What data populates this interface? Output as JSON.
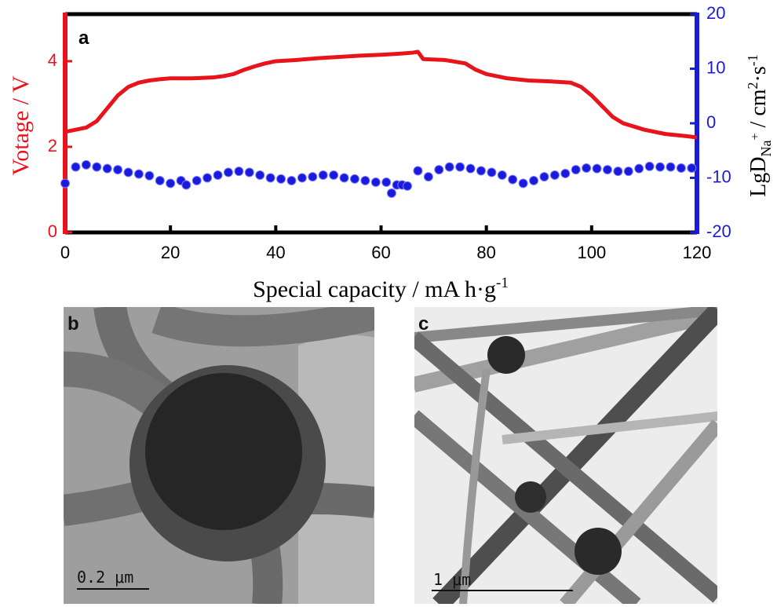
{
  "chart_data": {
    "type": "line",
    "label": "a",
    "xlabel": [
      "Special capacity / mA h·g",
      "-1"
    ],
    "ylabel": "Votage / V",
    "y2label": [
      "LgD",
      "Na",
      "+",
      " / cm",
      "2",
      "·s",
      "-1"
    ],
    "xlim": [
      0,
      120
    ],
    "xticks": [
      0,
      20,
      40,
      60,
      80,
      100,
      120
    ],
    "ylim": [
      0,
      5.1
    ],
    "yticks": [
      0,
      2,
      4
    ],
    "ycolor": "#e8141c",
    "y2lim": [
      -20,
      20
    ],
    "y2ticks": [
      -20,
      -10,
      0,
      10,
      20
    ],
    "y2color": "#1a1adc",
    "series": [
      {
        "color": "#e8141c",
        "style": "line",
        "x": [
          0,
          2,
          4,
          6,
          8,
          10,
          12,
          14,
          16,
          18,
          20,
          24,
          28,
          30,
          32,
          34,
          36,
          38,
          40,
          44,
          48,
          52,
          56,
          60,
          64,
          66,
          67,
          68,
          72,
          76,
          78,
          80,
          84,
          88,
          92,
          96,
          98,
          100,
          102,
          104,
          106,
          110,
          114,
          118,
          120
        ],
        "values": [
          2.35,
          2.4,
          2.45,
          2.6,
          2.9,
          3.2,
          3.4,
          3.5,
          3.55,
          3.58,
          3.6,
          3.6,
          3.62,
          3.65,
          3.7,
          3.8,
          3.88,
          3.95,
          4.0,
          4.03,
          4.07,
          4.1,
          4.13,
          4.15,
          4.18,
          4.2,
          4.22,
          4.05,
          4.03,
          3.95,
          3.8,
          3.7,
          3.6,
          3.55,
          3.53,
          3.5,
          3.4,
          3.2,
          2.95,
          2.7,
          2.55,
          2.4,
          2.3,
          2.25,
          2.22
        ]
      },
      {
        "color": "#1a1adc",
        "style": "markers",
        "axis": "y2",
        "x": [
          0,
          2,
          4,
          6,
          8,
          10,
          12,
          14,
          16,
          18,
          20,
          22,
          23,
          25,
          27,
          29,
          31,
          33,
          35,
          37,
          39,
          41,
          43,
          45,
          47,
          49,
          51,
          53,
          55,
          57,
          59,
          61,
          62,
          63,
          64,
          65,
          67,
          69,
          71,
          73,
          75,
          77,
          79,
          81,
          83,
          85,
          87,
          89,
          91,
          93,
          95,
          97,
          99,
          101,
          103,
          105,
          107,
          109,
          111,
          113,
          115,
          117,
          119
        ],
        "values": [
          -11,
          -8,
          -7.6,
          -8,
          -8.3,
          -8.5,
          -9,
          -9.3,
          -9.6,
          -10.5,
          -11,
          -10.5,
          -11.3,
          -10.5,
          -10,
          -9.5,
          -9,
          -8.8,
          -9,
          -9.5,
          -10,
          -10.2,
          -10.5,
          -10,
          -9.8,
          -9.5,
          -9.5,
          -10,
          -10.2,
          -10.5,
          -10.8,
          -10.8,
          -12.8,
          -11.3,
          -11.3,
          -11.5,
          -8.7,
          -9.8,
          -8.5,
          -8,
          -8,
          -8.3,
          -8.7,
          -9,
          -9.5,
          -10.3,
          -11,
          -10.5,
          -9.8,
          -9.5,
          -9.2,
          -8.5,
          -8.2,
          -8.3,
          -8.5,
          -8.8,
          -8.8,
          -8.3,
          -7.9,
          -8,
          -8,
          -8.2,
          -8.2
        ]
      }
    ]
  },
  "panels": [
    {
      "label": "b",
      "scale_bar": "0.2 μm"
    },
    {
      "label": "c",
      "scale_bar": "1 μm"
    }
  ]
}
